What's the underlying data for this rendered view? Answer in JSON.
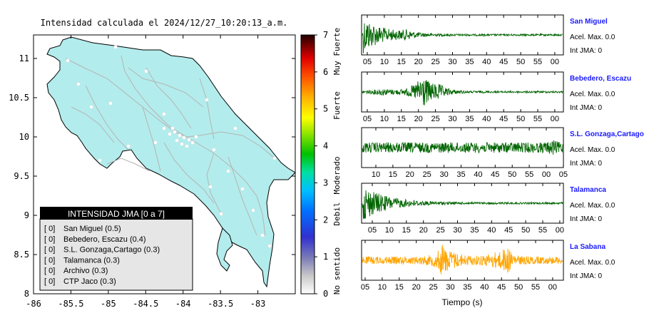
{
  "map": {
    "title": "Intensidad calculada el 2024/12/27_10:20:13_a.m.",
    "x_ticks": [
      "-86",
      "-85.5",
      "-85",
      "-84.5",
      "-84",
      "-83.5",
      "-83"
    ],
    "y_ticks": [
      "8",
      "8.5",
      "9",
      "9.5",
      "10",
      "10.5",
      "11"
    ],
    "land_color": "#b3ecec"
  },
  "colorbar": {
    "ticks": [
      "0",
      "1",
      "2",
      "3",
      "4",
      "5",
      "6",
      "7"
    ],
    "labels": [
      "No sentido",
      "Debil",
      "Moderado",
      "Fuerte",
      "Muy Fuerte"
    ]
  },
  "legend": {
    "title": "INTENSIDAD JMA [0 a 7]",
    "items": [
      {
        "bracket": "[ 0]",
        "label": "San Miguel (0.5)"
      },
      {
        "bracket": "[ 0]",
        "label": "Bebedero, Escazu (0.4)"
      },
      {
        "bracket": "[ 0]",
        "label": "S.L. Gonzaga,Cartago (0.3)"
      },
      {
        "bracket": "[ 0]",
        "label": "Talamanca (0.3)"
      },
      {
        "bracket": "[ 0]",
        "label": "Archivo (0.3)"
      },
      {
        "bracket": "[ 0]",
        "label": "CTP Jaco (0.3)"
      }
    ]
  },
  "traces_xlabel": "Tiempo (s)",
  "stations": [
    {
      "name": "San Miguel",
      "acel": "Acel. Max. 0.0",
      "int": "Int JMA: 0",
      "color": "#006400",
      "ticks": [
        "05",
        "10",
        "15",
        "20",
        "25",
        "30",
        "35",
        "40",
        "45",
        "50",
        "55",
        "00"
      ]
    },
    {
      "name": "Bebedero, Escazu",
      "acel": "Acel. Max. 0.0",
      "int": "Int JMA: 0",
      "color": "#006400",
      "ticks": [
        "05",
        "10",
        "15",
        "20",
        "25",
        "30",
        "35",
        "40",
        "45",
        "50",
        "55",
        "00"
      ]
    },
    {
      "name": "S.L. Gonzaga,Cartago",
      "acel": "Acel. Max. 0.0",
      "int": "Int JMA: 0",
      "color": "#006400",
      "ticks": [
        "10",
        "15",
        "20",
        "25",
        "30",
        "35",
        "40",
        "45",
        "50",
        "55",
        "00",
        "05"
      ]
    },
    {
      "name": "Talamanca",
      "acel": "Acel. Max. 0.0",
      "int": "Int JMA: 0",
      "color": "#006400",
      "ticks": [
        "05",
        "10",
        "15",
        "20",
        "25",
        "30",
        "35",
        "40",
        "45",
        "50",
        "55",
        "00"
      ]
    },
    {
      "name": "La Sabana",
      "acel": "Acel. Max. 0.0",
      "int": "Int JMA: 0",
      "color": "#ffa500",
      "ticks": [
        "05",
        "10",
        "15",
        "20",
        "25",
        "30",
        "35",
        "40",
        "45",
        "50",
        "55",
        "00"
      ]
    }
  ],
  "chart_data": {
    "type": "scatter",
    "title": "Intensidad calculada el 2024/12/27_10:20:13_a.m.",
    "xlim": [
      -86,
      -82.5
    ],
    "ylim": [
      8,
      11.3
    ],
    "grid": false,
    "legend_placement": "bottom-left",
    "colorbar_range": [
      0,
      7
    ],
    "series": [
      {
        "name": "San Miguel",
        "value": 0.5
      },
      {
        "name": "Bebedero, Escazu",
        "value": 0.4
      },
      {
        "name": "S.L. Gonzaga,Cartago",
        "value": 0.3
      },
      {
        "name": "Talamanca",
        "value": 0.3
      },
      {
        "name": "Archivo",
        "value": 0.3
      },
      {
        "name": "CTP Jaco",
        "value": 0.3
      }
    ]
  }
}
